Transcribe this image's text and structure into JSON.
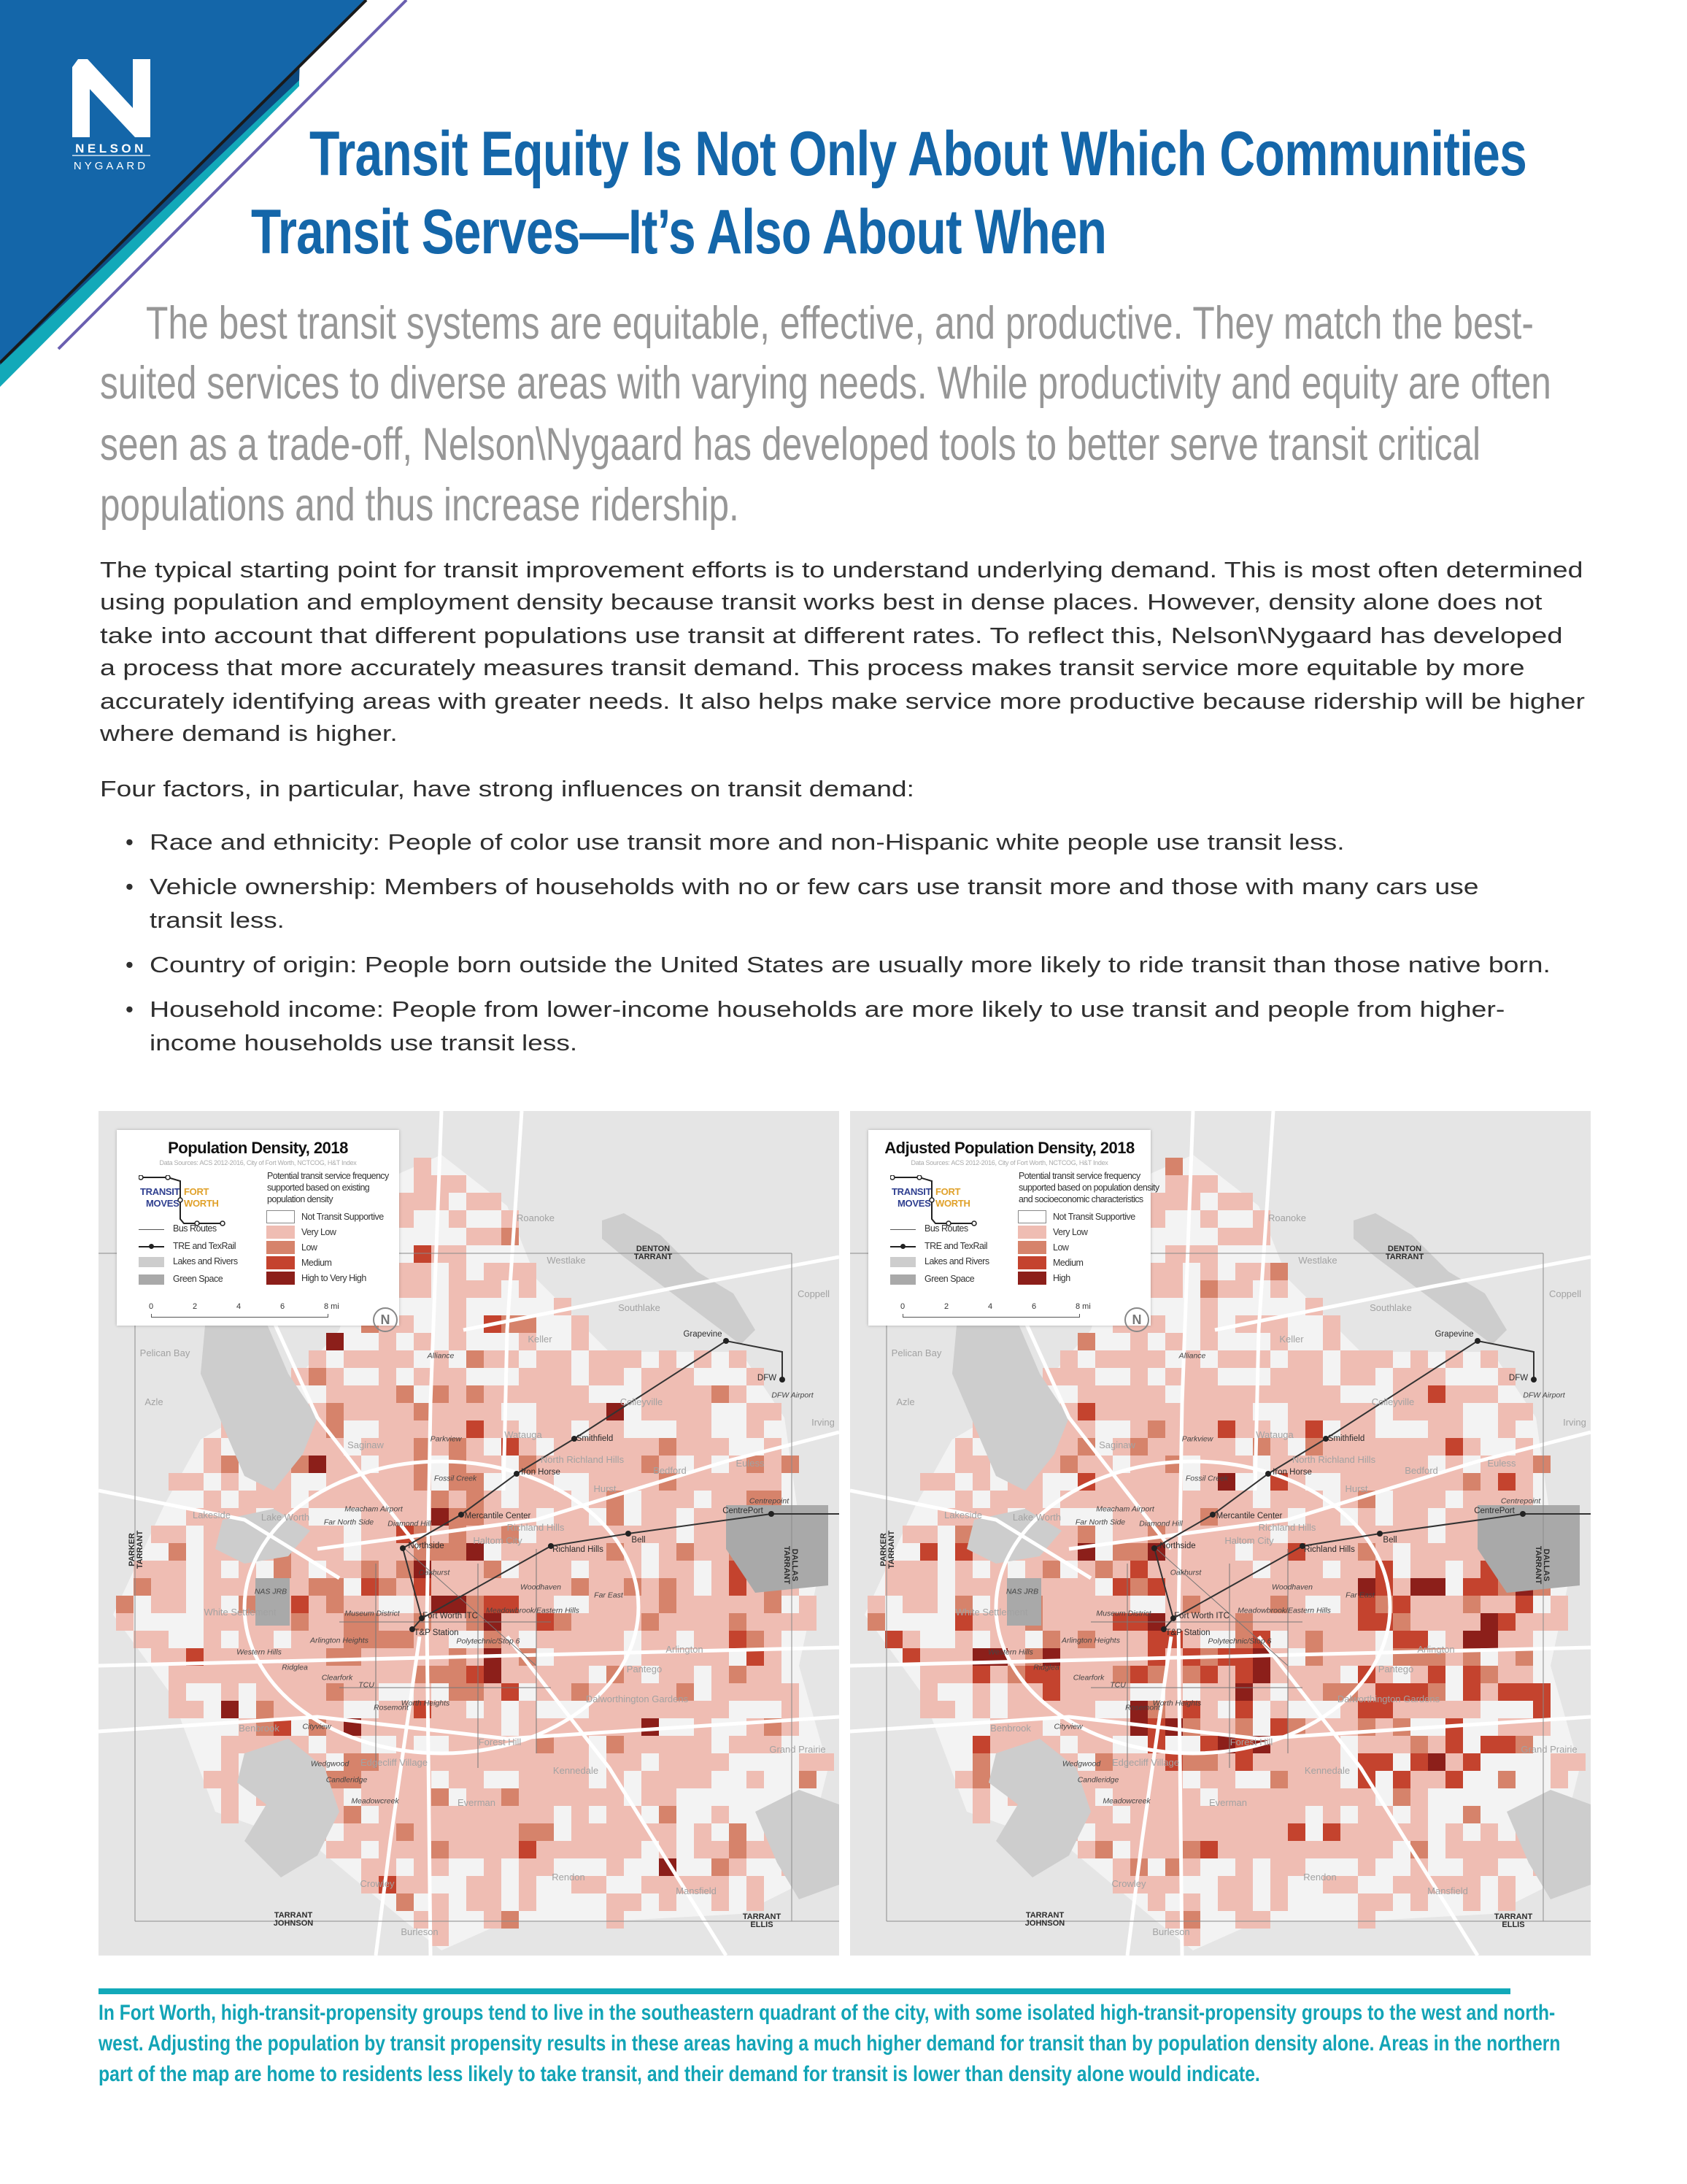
{
  "logo": {
    "line1": "NELSON",
    "line2": "NYGAARD",
    "letter": "N"
  },
  "colors": {
    "brand_blue": "#1466a9",
    "dark_blue": "#0d4a80",
    "teal": "#12a9b9",
    "purple": "#6a5fb0",
    "lead_gray": "#979797"
  },
  "title": {
    "lines": [
      "Transit Equity Is Not Only About Which Communities",
      "Transit Serves—It’s Also About When"
    ]
  },
  "lead": {
    "lines": [
      "The best transit systems are equitable, effective, and productive. They match the best-",
      "suited services to diverse areas with varying needs. While productivity and equity are often",
      "seen as a trade-off, Nelson\\Nygaard has developed tools to better serve transit critical",
      "populations and thus increase ridership."
    ]
  },
  "body": {
    "paragraph_lines": [
      "The typical starting point for transit improvement efforts is to understand underlying demand. This is most often determined",
      "using population and employment density because transit works best in dense places. However, density alone does not",
      "take into account that different populations use transit at different rates. To reflect this, Nelson\\Nygaard has developed",
      "a process that more accurately measures transit demand. This process makes transit service more equitable by more",
      "accurately identifying areas with greater needs. It also helps make service more productive because ridership will be higher",
      "where demand is higher."
    ],
    "intro": "Four factors, in particular, have strong influences on transit demand:",
    "bullet_symbol": "•",
    "bullets": [
      {
        "lines": [
          "Race and ethnicity: People of color use transit more and non-Hispanic white people use transit less."
        ]
      },
      {
        "lines": [
          "Vehicle ownership: Members of households with no or few cars use transit more and those with many cars use",
          "transit less."
        ]
      },
      {
        "lines": [
          "Country of origin: People born outside the United States are usually more likely to ride transit than those native born."
        ]
      },
      {
        "lines": [
          "Household income: People from lower-income households are more likely to use transit and people from higher-",
          "income households use transit less."
        ]
      }
    ]
  },
  "maps": [
    {
      "title": "Population Density, 2018",
      "sources": "Data Sources: ACS 2012-2016, City of Fort Worth, NCTCOG, H&T Index",
      "legend_heading_lines": [
        "Potential transit service frequency",
        "supported based on existing",
        "population density"
      ],
      "levels": [
        {
          "label": "Not Transit Supportive",
          "color": "#ffffff"
        },
        {
          "label": "Very Low",
          "color": "#efbdb3"
        },
        {
          "label": "Low",
          "color": "#d6836b"
        },
        {
          "label": "Medium",
          "color": "#c4432e"
        },
        {
          "label": "High to Very High",
          "color": "#8c1f1a"
        }
      ]
    },
    {
      "title": "Adjusted Population Density, 2018",
      "sources": "Data Sources: ACS 2012-2016, City of Fort Worth, NCTCOG, H&T Index",
      "legend_heading_lines": [
        "Potential transit service frequency",
        "supported based on population density",
        "and socioeconomic characteristics"
      ],
      "levels": [
        {
          "label": "Not Transit Supportive",
          "color": "#ffffff"
        },
        {
          "label": "Very Low",
          "color": "#efbdb3"
        },
        {
          "label": "Low",
          "color": "#d6836b"
        },
        {
          "label": "Medium",
          "color": "#c4432e"
        },
        {
          "label": "High",
          "color": "#8c1f1a"
        }
      ]
    }
  ],
  "legend_common": {
    "brand": {
      "transit": "TRANSIT",
      "moves": "MOVES",
      "fort": "FORT",
      "worth": "WORTH",
      "transit_color": "#2f3f8f",
      "fort_color": "#e0a12a"
    },
    "items": [
      {
        "label": "Bus Routes",
        "icon": "thin-line"
      },
      {
        "label": "TRE and TexRail",
        "icon": "line-with-station-dot"
      },
      {
        "label": "Lakes and Rivers",
        "color": "#cdcdcd"
      },
      {
        "label": "Green Space",
        "color": "#a9a9a9"
      }
    ],
    "scale_labels": [
      "0",
      "2",
      "4",
      "6",
      "8 mi"
    ],
    "north_letter": "N"
  },
  "map_labels": [
    {
      "text": "Roanoke"
    },
    {
      "text": "Westlake"
    },
    {
      "text": "Southlake"
    },
    {
      "text": "Coppell"
    },
    {
      "text": "Keller"
    },
    {
      "text": "Grapevine"
    },
    {
      "text": "Pelican Bay"
    },
    {
      "text": "Alliance"
    },
    {
      "text": "DFW"
    },
    {
      "text": "DFW Airport"
    },
    {
      "text": "Colleyville"
    },
    {
      "text": "Azle"
    },
    {
      "text": "Irving"
    },
    {
      "text": "Watauga"
    },
    {
      "text": "Smithfield"
    },
    {
      "text": "Parkview"
    },
    {
      "text": "Saginaw"
    },
    {
      "text": "North Richland Hills"
    },
    {
      "text": "Euless"
    },
    {
      "text": "Iron Horse"
    },
    {
      "text": "Bedford"
    },
    {
      "text": "Fossil Creek"
    },
    {
      "text": "Hurst"
    },
    {
      "text": "Centrepoint"
    },
    {
      "text": "CentrePort"
    },
    {
      "text": "Lakeside"
    },
    {
      "text": "Lake Worth"
    },
    {
      "text": "Meacham Airport"
    },
    {
      "text": "Far North Side"
    },
    {
      "text": "Mercantile Center"
    },
    {
      "text": "Diamond Hill"
    },
    {
      "text": "Richland Hills"
    },
    {
      "text": "Haltom City"
    },
    {
      "text": "Bell"
    },
    {
      "text": "Northside"
    },
    {
      "text": "Richland Hills"
    },
    {
      "text": "Oakhurst"
    },
    {
      "text": "Woodhaven"
    },
    {
      "text": "NAS JRB"
    },
    {
      "text": "Far East"
    },
    {
      "text": "Meadowbrook/Eastern Hills"
    },
    {
      "text": "White Settlement"
    },
    {
      "text": "Museum District"
    },
    {
      "text": "Fort Worth ITC"
    },
    {
      "text": "T&P Station"
    },
    {
      "text": "Arlington Heights"
    },
    {
      "text": "Polytechnic/Stop 6"
    },
    {
      "text": "Western Hills"
    },
    {
      "text": "Arlington"
    },
    {
      "text": "Ridglea"
    },
    {
      "text": "Pantego"
    },
    {
      "text": "Clearfork"
    },
    {
      "text": "TCU"
    },
    {
      "text": "Dalworthington Gardens"
    },
    {
      "text": "Worth Heights"
    },
    {
      "text": "Rosemont"
    },
    {
      "text": "Cityview"
    },
    {
      "text": "Benbrook"
    },
    {
      "text": "Forest Hill"
    },
    {
      "text": "Grand Prairie"
    },
    {
      "text": "Edgecliff Village"
    },
    {
      "text": "Wedgwood"
    },
    {
      "text": "Kennedale"
    },
    {
      "text": "Candleridge"
    },
    {
      "text": "Meadowcreek"
    },
    {
      "text": "Everman"
    },
    {
      "text": "Rendon"
    },
    {
      "text": "Crowley"
    },
    {
      "text": "Mansfield"
    },
    {
      "text": "Burleson"
    }
  ],
  "county_labels": [
    {
      "top": "DENTON",
      "bottom": "TARRANT"
    },
    {
      "top": "PARKER",
      "bottom": "TARRANT"
    },
    {
      "top": "DALLAS",
      "bottom": "TARRANT"
    },
    {
      "top": "TARRANT",
      "bottom": "JOHNSON"
    },
    {
      "top": "TARRANT",
      "bottom": "ELLIS"
    }
  ],
  "caption": {
    "lines": [
      "In Fort Worth, high-transit-propensity groups tend to live in the southeastern quadrant of the city, with some isolated high-transit-propensity groups to the west and north-",
      "west. Adjusting the population by transit propensity results in these areas having a much higher demand for transit than by population density alone. Areas in the northern",
      "part of the map are home to residents less likely to take transit, and their demand for transit is lower than density alone would indicate."
    ]
  }
}
